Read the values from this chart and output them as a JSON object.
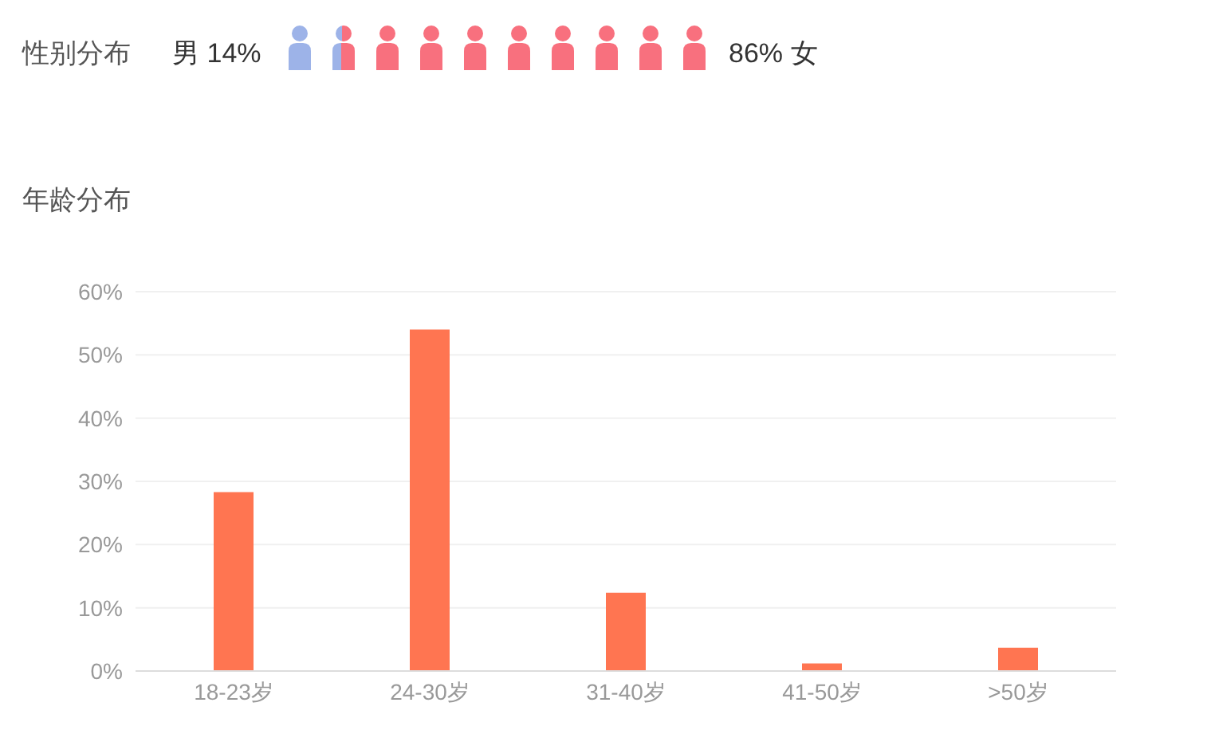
{
  "chart_data": [
    {
      "type": "other",
      "title": "性别分布",
      "categories": [
        "男",
        "女"
      ],
      "values": [
        14,
        86
      ],
      "value_labels": [
        "14%",
        "86%"
      ],
      "colors": [
        "#9db3e8",
        "#f8707e"
      ]
    },
    {
      "type": "bar",
      "title": "年龄分布",
      "categories": [
        "18-23岁",
        "24-30岁",
        "31-40岁",
        "41-50岁",
        ">50岁"
      ],
      "values": [
        28.3,
        54,
        12.4,
        1.2,
        3.7
      ],
      "color": "#ff7551",
      "ylim": [
        0,
        60
      ],
      "yticks": [
        {
          "value": 0,
          "label": "0%"
        },
        {
          "value": 10,
          "label": "10%"
        },
        {
          "value": 20,
          "label": "20%"
        },
        {
          "value": 30,
          "label": "30%"
        },
        {
          "value": 40,
          "label": "40%"
        },
        {
          "value": 50,
          "label": "50%"
        },
        {
          "value": 60,
          "label": "60%"
        }
      ],
      "grid": "y"
    }
  ]
}
